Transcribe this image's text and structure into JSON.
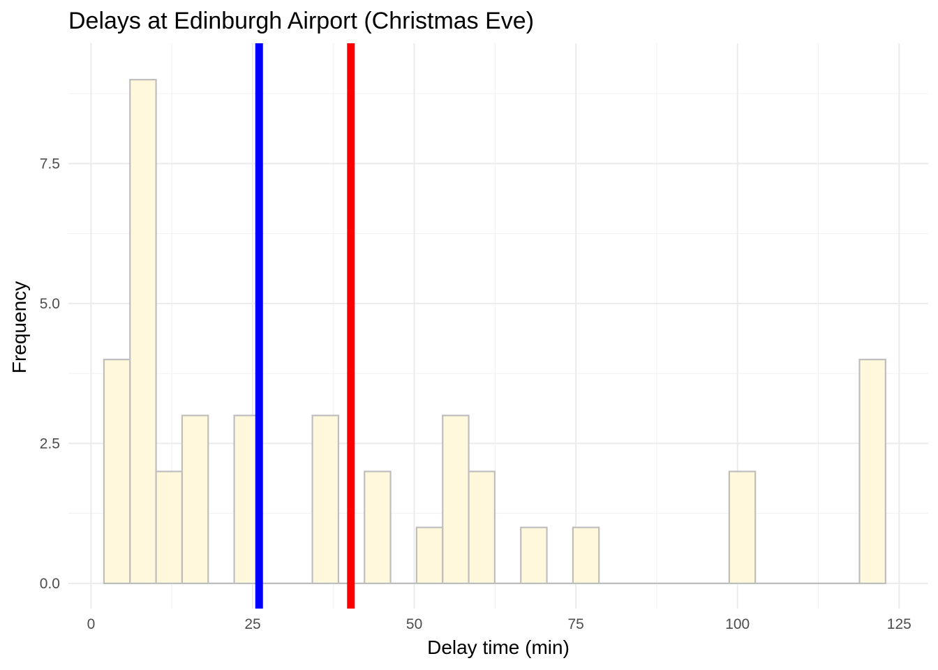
{
  "chart_data": {
    "type": "histogram",
    "title": "Delays at Edinburgh Airport (Christmas Eve)",
    "xlabel": "Delay time (min)",
    "ylabel": "Frequency",
    "xlim": [
      -3.5,
      129.5
    ],
    "ylim": [
      -0.45,
      9.65
    ],
    "x_ticks": [
      0,
      25,
      50,
      75,
      100,
      125
    ],
    "x_tick_labels": [
      "0",
      "25",
      "50",
      "75",
      "100",
      "125"
    ],
    "y_ticks": [
      0,
      2.5,
      5,
      7.5
    ],
    "y_tick_labels": [
      "0.0",
      "2.5",
      "5.0",
      "7.5"
    ],
    "grid": true,
    "bin_width": 4.03,
    "bins": [
      {
        "x0": 2.0,
        "x1": 6.03,
        "count": 4
      },
      {
        "x0": 6.03,
        "x1": 10.06,
        "count": 9
      },
      {
        "x0": 10.06,
        "x1": 14.09,
        "count": 2
      },
      {
        "x0": 14.09,
        "x1": 18.12,
        "count": 3
      },
      {
        "x0": 18.12,
        "x1": 22.15,
        "count": 0
      },
      {
        "x0": 22.15,
        "x1": 26.18,
        "count": 3
      },
      {
        "x0": 26.18,
        "x1": 30.21,
        "count": 0
      },
      {
        "x0": 30.21,
        "x1": 34.24,
        "count": 0
      },
      {
        "x0": 34.24,
        "x1": 38.27,
        "count": 3
      },
      {
        "x0": 38.27,
        "x1": 42.3,
        "count": 0
      },
      {
        "x0": 42.3,
        "x1": 46.33,
        "count": 2
      },
      {
        "x0": 46.33,
        "x1": 50.36,
        "count": 0
      },
      {
        "x0": 50.36,
        "x1": 54.39,
        "count": 1
      },
      {
        "x0": 54.39,
        "x1": 58.42,
        "count": 3
      },
      {
        "x0": 58.42,
        "x1": 62.45,
        "count": 2
      },
      {
        "x0": 62.45,
        "x1": 66.48,
        "count": 0
      },
      {
        "x0": 66.48,
        "x1": 70.51,
        "count": 1
      },
      {
        "x0": 70.51,
        "x1": 74.54,
        "count": 0
      },
      {
        "x0": 74.54,
        "x1": 78.57,
        "count": 1
      },
      {
        "x0": 78.57,
        "x1": 82.6,
        "count": 0
      },
      {
        "x0": 82.6,
        "x1": 86.63,
        "count": 0
      },
      {
        "x0": 86.63,
        "x1": 90.66,
        "count": 0
      },
      {
        "x0": 90.66,
        "x1": 94.69,
        "count": 0
      },
      {
        "x0": 94.69,
        "x1": 98.72,
        "count": 0
      },
      {
        "x0": 98.72,
        "x1": 102.75,
        "count": 2
      },
      {
        "x0": 102.75,
        "x1": 106.78,
        "count": 0
      },
      {
        "x0": 106.78,
        "x1": 110.81,
        "count": 0
      },
      {
        "x0": 110.81,
        "x1": 114.84,
        "count": 0
      },
      {
        "x0": 114.84,
        "x1": 118.87,
        "count": 0
      },
      {
        "x0": 118.87,
        "x1": 122.9,
        "count": 4
      }
    ],
    "bar_fill": "#fff8dc",
    "bar_stroke": "#bebebe",
    "vlines": [
      {
        "x": 26.0,
        "color": "#0000ff"
      },
      {
        "x": 40.2,
        "color": "#ff0000"
      }
    ]
  }
}
